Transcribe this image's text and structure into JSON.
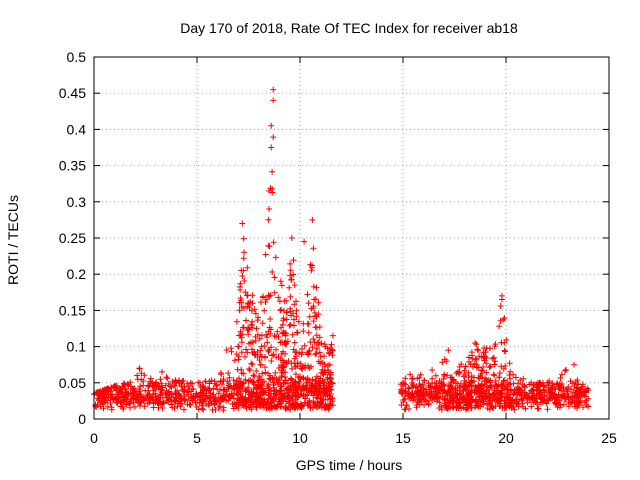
{
  "chart_data": {
    "type": "scatter",
    "title": "Day 170 of 2018, Rate Of TEC Index for receiver ab18",
    "xlabel": "GPS time / hours",
    "ylabel": "ROTI / TECUs",
    "xlim": [
      0,
      25
    ],
    "ylim": [
      0,
      0.5
    ],
    "xticks": [
      0,
      5,
      10,
      15,
      20,
      25
    ],
    "xtick_labels": [
      "0",
      "5",
      "10",
      "15",
      "20",
      "25"
    ],
    "yticks": [
      0,
      0.05,
      0.1,
      0.15,
      0.2,
      0.25,
      0.3,
      0.35,
      0.4,
      0.45,
      0.5
    ],
    "ytick_labels": [
      "0",
      "0.05",
      "0.1",
      "0.15",
      "0.2",
      "0.25",
      "0.3",
      "0.35",
      "0.4",
      "0.45",
      "0.5"
    ],
    "grid": true,
    "marker": "+",
    "color": "#ff0000",
    "data_gap_hours": [
      11.6,
      14.9
    ],
    "series": [
      {
        "name": "ROTI",
        "envelope": [
          [
            0.0,
            0.035
          ],
          [
            1.0,
            0.045
          ],
          [
            2.0,
            0.055
          ],
          [
            2.2,
            0.07
          ],
          [
            3.0,
            0.05
          ],
          [
            3.3,
            0.065
          ],
          [
            4.0,
            0.055
          ],
          [
            5.0,
            0.05
          ],
          [
            6.0,
            0.055
          ],
          [
            7.0,
            0.15
          ],
          [
            7.2,
            0.27
          ],
          [
            7.5,
            0.2
          ],
          [
            8.0,
            0.14
          ],
          [
            8.3,
            0.22
          ],
          [
            8.5,
            0.31
          ],
          [
            8.7,
            0.455
          ],
          [
            8.9,
            0.22
          ],
          [
            9.3,
            0.16
          ],
          [
            9.6,
            0.25
          ],
          [
            10.0,
            0.12
          ],
          [
            10.3,
            0.18
          ],
          [
            10.6,
            0.275
          ],
          [
            11.0,
            0.12
          ],
          [
            11.6,
            0.12
          ],
          [
            14.9,
            0.06
          ],
          [
            15.0,
            0.06
          ],
          [
            16.0,
            0.07
          ],
          [
            16.5,
            0.07
          ],
          [
            17.0,
            0.09
          ],
          [
            17.5,
            0.07
          ],
          [
            18.0,
            0.08
          ],
          [
            18.5,
            0.105
          ],
          [
            19.0,
            0.1
          ],
          [
            19.5,
            0.11
          ],
          [
            19.8,
            0.17
          ],
          [
            20.2,
            0.08
          ],
          [
            21.0,
            0.05
          ],
          [
            22.0,
            0.05
          ],
          [
            23.0,
            0.075
          ],
          [
            23.5,
            0.06
          ],
          [
            24.0,
            0.04
          ]
        ],
        "notable_points": [
          [
            8.7,
            0.455
          ],
          [
            8.7,
            0.44
          ],
          [
            8.6,
            0.405
          ],
          [
            8.6,
            0.375
          ],
          [
            8.5,
            0.315
          ],
          [
            8.5,
            0.29
          ],
          [
            7.2,
            0.27
          ],
          [
            10.6,
            0.275
          ],
          [
            9.6,
            0.25
          ],
          [
            10.2,
            0.245
          ],
          [
            19.8,
            0.17
          ],
          [
            19.8,
            0.165
          ],
          [
            18.5,
            0.105
          ],
          [
            17.2,
            0.095
          ],
          [
            23.3,
            0.075
          ],
          [
            2.2,
            0.07
          ],
          [
            3.3,
            0.065
          ]
        ]
      }
    ]
  }
}
